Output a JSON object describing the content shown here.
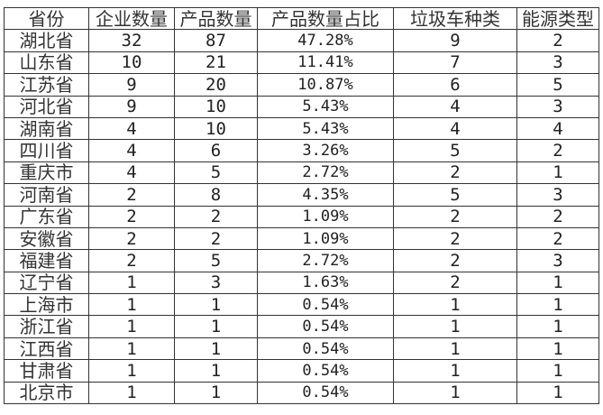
{
  "table": {
    "headers": [
      "省份",
      "企业数量",
      "产品数量",
      "产品数量占比",
      "垃圾车种类",
      "能源类型"
    ],
    "rows": [
      [
        "湖北省",
        "32",
        "87",
        "47.28%",
        "9",
        "2"
      ],
      [
        "山东省",
        "10",
        "21",
        "11.41%",
        "7",
        "3"
      ],
      [
        "江苏省",
        "9",
        "20",
        "10.87%",
        "6",
        "5"
      ],
      [
        "河北省",
        "9",
        "10",
        "5.43%",
        "4",
        "3"
      ],
      [
        "湖南省",
        "4",
        "10",
        "5.43%",
        "4",
        "4"
      ],
      [
        "四川省",
        "4",
        "6",
        "3.26%",
        "5",
        "2"
      ],
      [
        "重庆市",
        "4",
        "5",
        "2.72%",
        "2",
        "1"
      ],
      [
        "河南省",
        "2",
        "8",
        "4.35%",
        "5",
        "3"
      ],
      [
        "广东省",
        "2",
        "2",
        "1.09%",
        "2",
        "2"
      ],
      [
        "安徽省",
        "2",
        "2",
        "1.09%",
        "2",
        "2"
      ],
      [
        "福建省",
        "2",
        "5",
        "2.72%",
        "2",
        "3"
      ],
      [
        "辽宁省",
        "1",
        "3",
        "1.63%",
        "2",
        "1"
      ],
      [
        "上海市",
        "1",
        "1",
        "0.54%",
        "1",
        "1"
      ],
      [
        "浙江省",
        "1",
        "1",
        "0.54%",
        "1",
        "1"
      ],
      [
        "江西省",
        "1",
        "1",
        "0.54%",
        "1",
        "1"
      ],
      [
        "甘肃省",
        "1",
        "1",
        "0.54%",
        "1",
        "1"
      ],
      [
        "北京市",
        "1",
        "1",
        "0.54%",
        "1",
        "1"
      ]
    ]
  }
}
